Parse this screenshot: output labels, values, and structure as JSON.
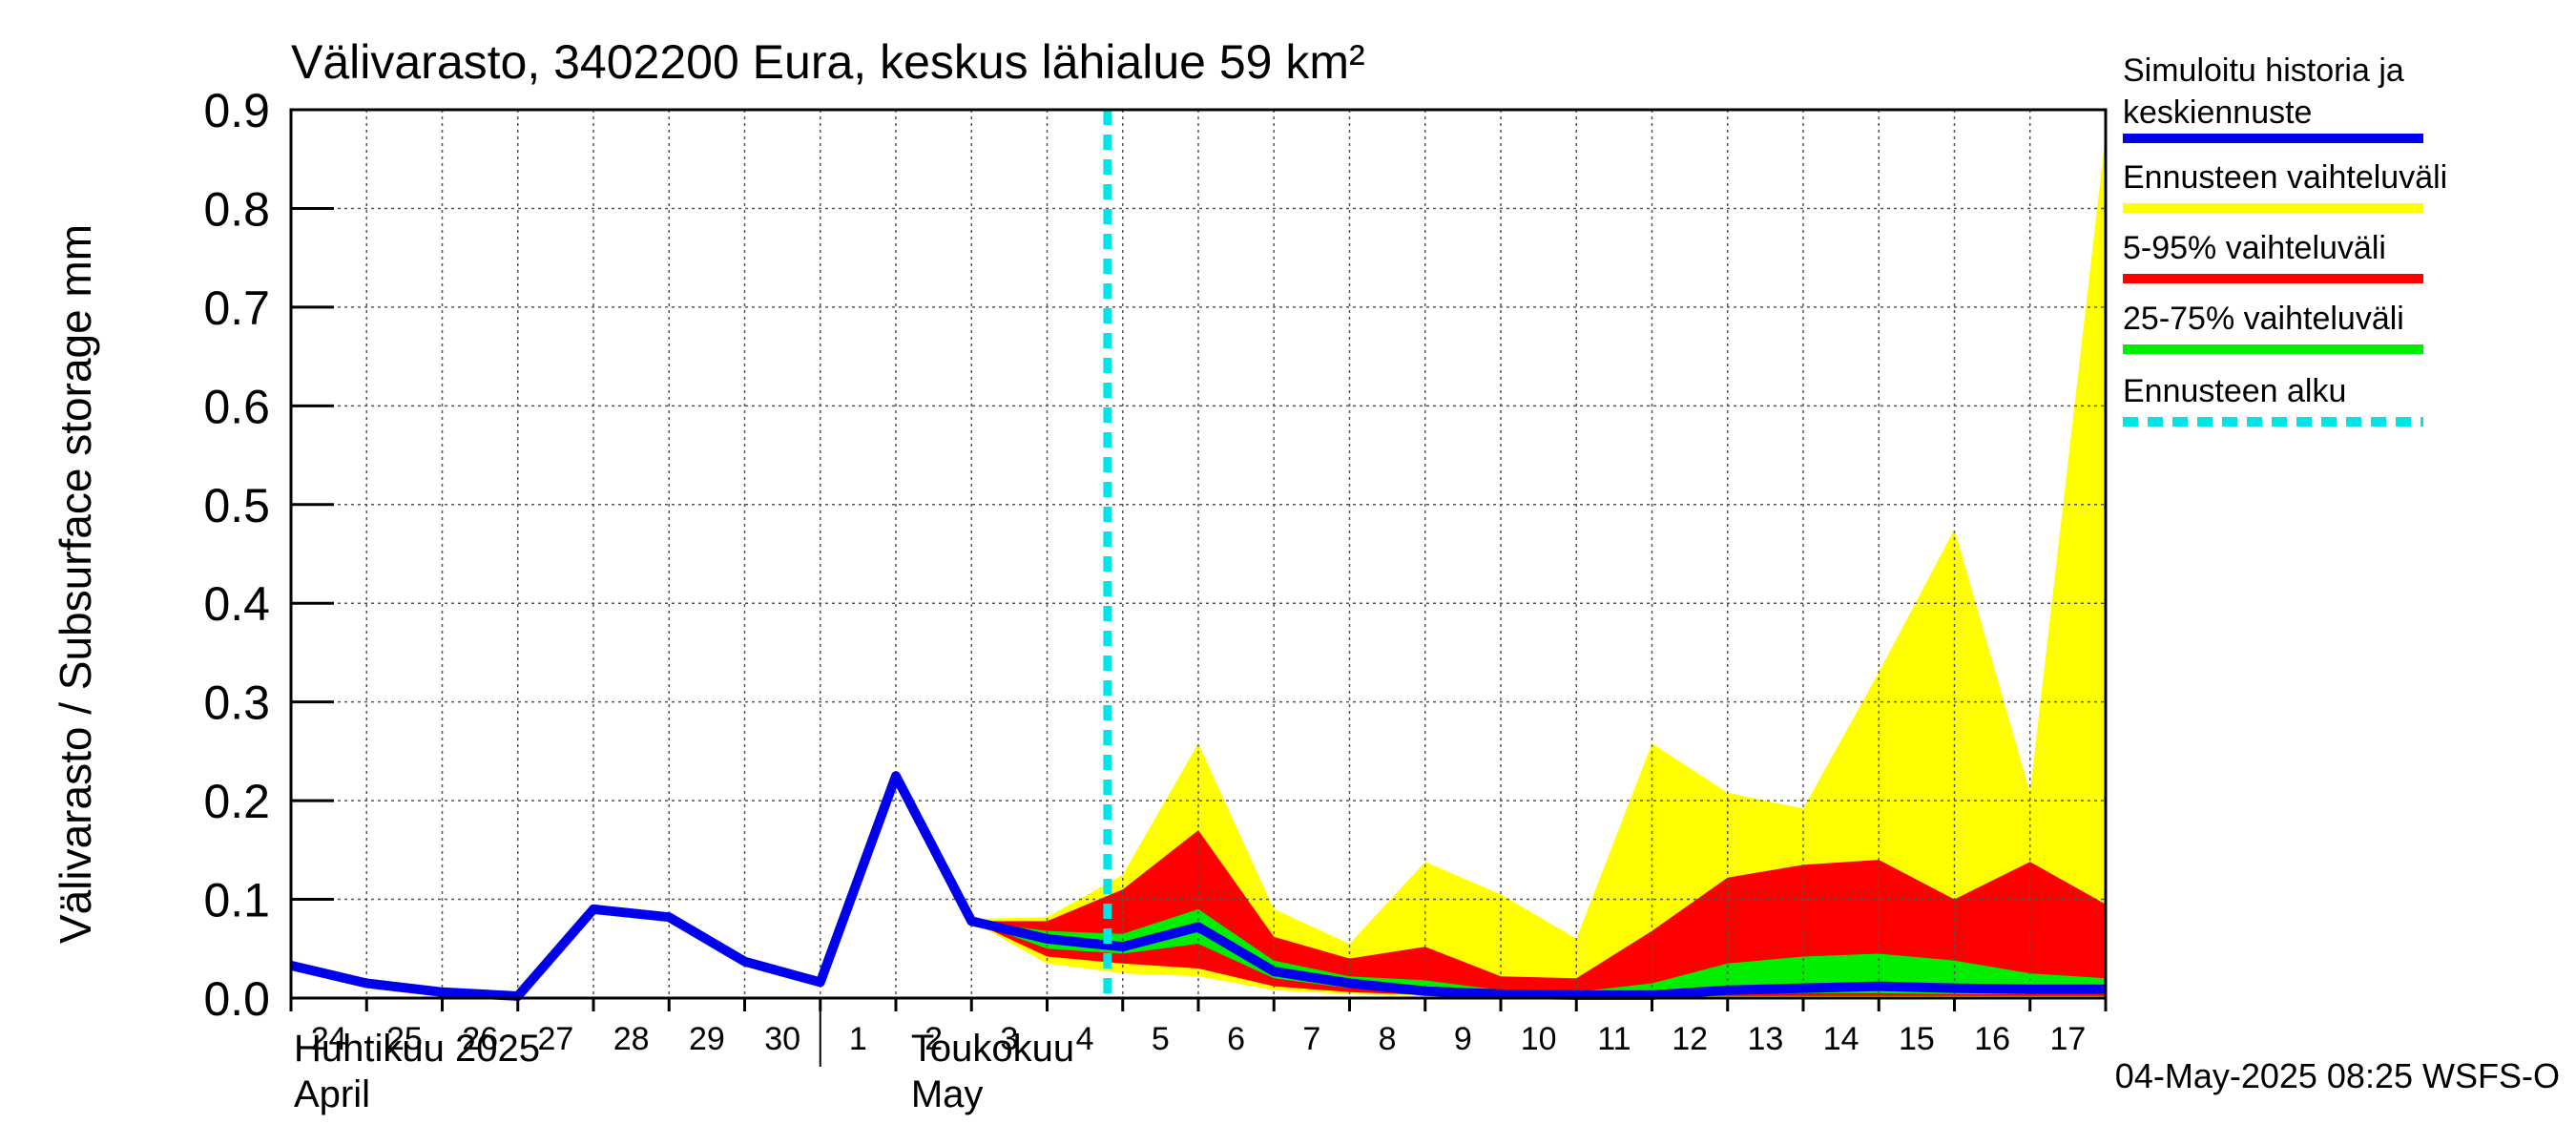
{
  "chart_data": {
    "type": "area",
    "title": "Välivarasto, 3402200 Eura, keskus lähialue 59 km²",
    "ylabel": "Välivarasto / Subsurface storage  mm",
    "ylim": [
      0,
      0.9
    ],
    "yticks": [
      "0.0",
      "0.1",
      "0.2",
      "0.3",
      "0.4",
      "0.5",
      "0.6",
      "0.7",
      "0.8",
      "0.9"
    ],
    "x_tick_labels": [
      "24",
      "25",
      "26",
      "27",
      "28",
      "29",
      "30",
      "1",
      "2",
      "3",
      "4",
      "5",
      "6",
      "7",
      "8",
      "9",
      "10",
      "11",
      "12",
      "13",
      "14",
      "15",
      "16",
      "17"
    ],
    "month_labels": [
      {
        "fi": "Huhtikuu  2025",
        "en": "April"
      },
      {
        "fi": "Toukokuu",
        "en": "May"
      }
    ],
    "grid": true,
    "forecast_start_day": 10.8,
    "series": [
      {
        "name": "Simuloitu historia ja keskiennuste",
        "color": "#0000ee",
        "x": [
          0,
          1,
          2,
          3,
          4,
          5,
          6,
          7,
          8,
          9,
          10,
          11,
          12,
          13,
          14,
          15,
          16,
          17,
          18,
          19,
          20,
          21,
          22,
          23,
          24
        ],
        "values": [
          0.033,
          0.015,
          0.006,
          0.002,
          0.09,
          0.082,
          0.037,
          0.016,
          0.225,
          0.078,
          0.06,
          0.052,
          0.072,
          0.027,
          0.015,
          0.007,
          0.004,
          0.003,
          0.003,
          0.008,
          0.01,
          0.012,
          0.01,
          0.009,
          0.009
        ]
      },
      {
        "name": "Ennusteen vaihteluväli",
        "color": "#ffff00",
        "x": [
          9,
          10,
          11,
          12,
          13,
          14,
          15,
          16,
          17,
          18,
          19,
          20,
          21,
          22,
          23,
          24
        ],
        "upper": [
          0.08,
          0.082,
          0.125,
          0.258,
          0.09,
          0.055,
          0.138,
          0.105,
          0.06,
          0.258,
          0.208,
          0.192,
          0.33,
          0.475,
          0.208,
          0.875
        ],
        "lower": [
          0.078,
          0.035,
          0.025,
          0.022,
          0.008,
          0.004,
          0.002,
          0.001,
          0.001,
          0.001,
          0.001,
          0.001,
          0.001,
          0.001,
          0.001,
          0.001
        ]
      },
      {
        "name": "5-95% vaihteluväli",
        "color": "#ff0000",
        "x": [
          9,
          10,
          11,
          12,
          13,
          14,
          15,
          16,
          17,
          18,
          19,
          20,
          21,
          22,
          23,
          24
        ],
        "upper": [
          0.078,
          0.078,
          0.11,
          0.17,
          0.062,
          0.04,
          0.052,
          0.022,
          0.02,
          0.068,
          0.122,
          0.135,
          0.14,
          0.1,
          0.138,
          0.095
        ],
        "lower": [
          0.078,
          0.042,
          0.035,
          0.03,
          0.012,
          0.006,
          0.003,
          0.002,
          0.002,
          0.002,
          0.002,
          0.002,
          0.002,
          0.002,
          0.002,
          0.002
        ]
      },
      {
        "name": "25-75% vaihteluväli",
        "color": "#00ee00",
        "x": [
          9,
          10,
          11,
          12,
          13,
          14,
          15,
          16,
          17,
          18,
          19,
          20,
          21,
          22,
          23,
          24
        ],
        "upper": [
          0.078,
          0.068,
          0.065,
          0.09,
          0.038,
          0.022,
          0.018,
          0.008,
          0.006,
          0.015,
          0.035,
          0.042,
          0.045,
          0.038,
          0.025,
          0.02
        ],
        "lower": [
          0.078,
          0.05,
          0.045,
          0.055,
          0.02,
          0.01,
          0.005,
          0.003,
          0.003,
          0.004,
          0.004,
          0.005,
          0.005,
          0.004,
          0.004,
          0.004
        ]
      }
    ],
    "legend": [
      {
        "label": "Simuloitu historia ja",
        "label2": "keskiennuste",
        "color": "#0000ee",
        "style": "line"
      },
      {
        "label": "Ennusteen vaihteluväli",
        "color": "#ffff00",
        "style": "line"
      },
      {
        "label": "5-95% vaihteluväli",
        "color": "#ff0000",
        "style": "line"
      },
      {
        "label": "25-75% vaihteluväli",
        "color": "#00ee00",
        "style": "line"
      },
      {
        "label": "Ennusteen alku",
        "color": "#00e5e5",
        "style": "dashed"
      }
    ],
    "legend_position": "right",
    "footer": "04-May-2025 08:25 WSFS-O"
  }
}
